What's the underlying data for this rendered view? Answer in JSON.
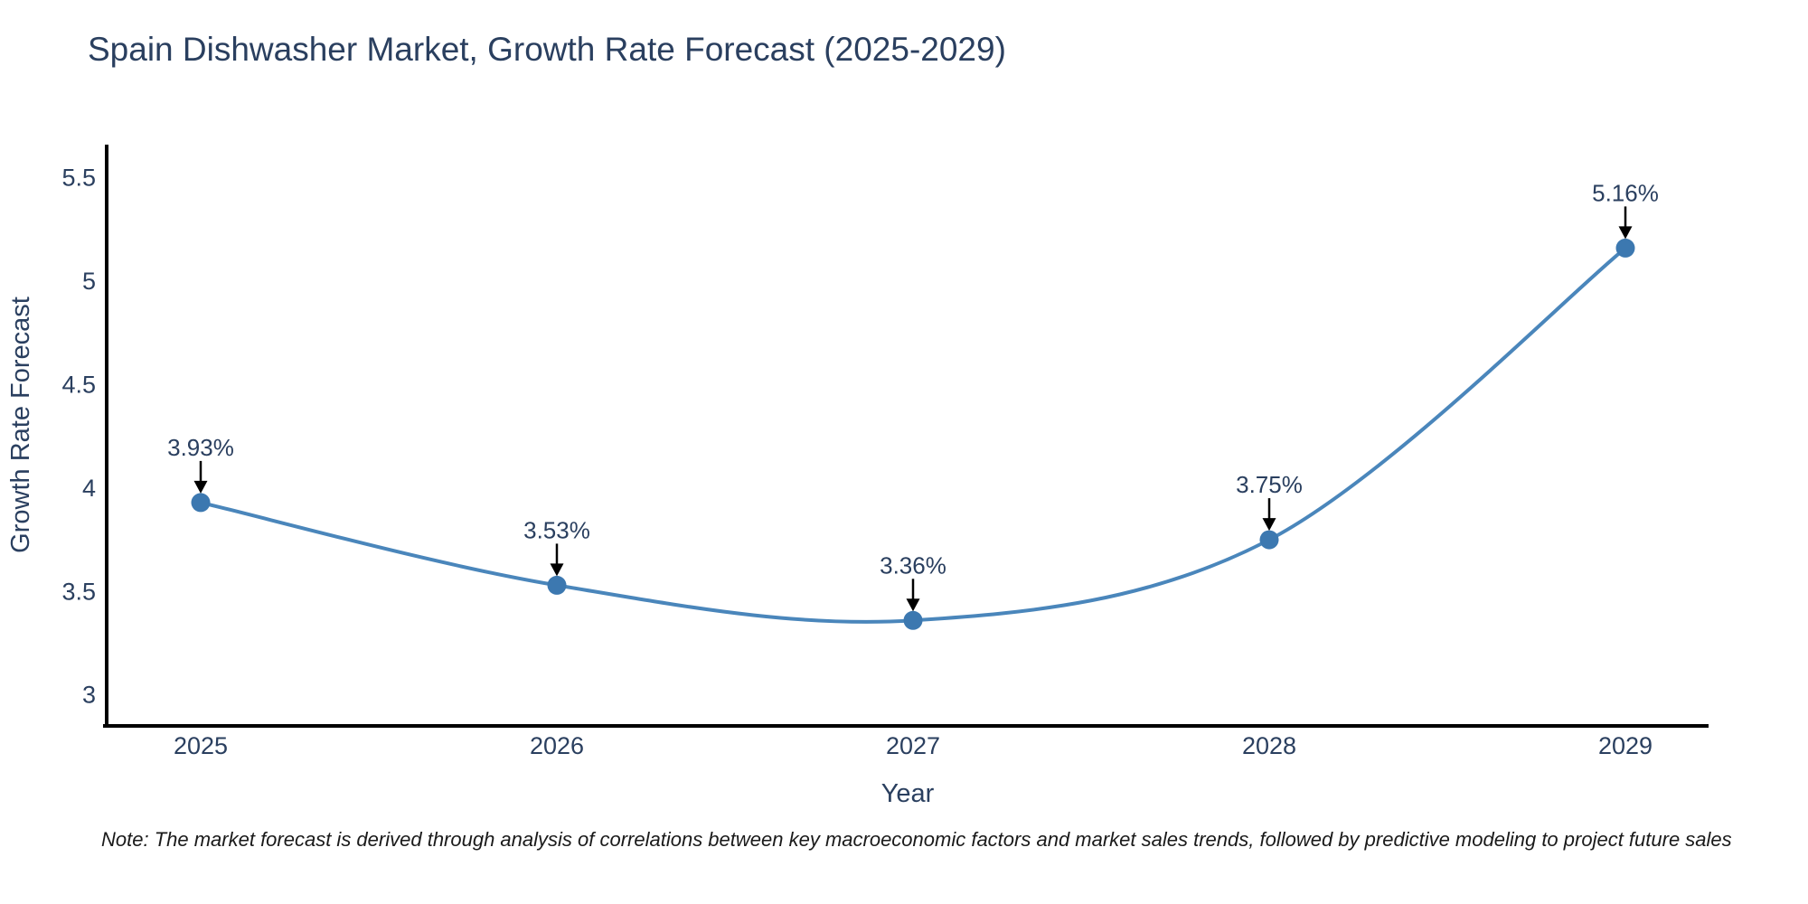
{
  "footer": {
    "note": "Note: The market forecast is derived through analysis of correlations between key macroeconomic factors and market sales trends, followed by predictive modeling to project future sales"
  },
  "colors": {
    "line": "#4a86bb",
    "marker": "#3c78b0",
    "axis": "#000000",
    "text": "#2a3f5f",
    "annotation_arrow": "#000000",
    "note_text": "#1a1a1a",
    "background": "#ffffff"
  },
  "chart_data": {
    "type": "line",
    "title": "Spain Dishwasher Market, Growth Rate Forecast (2025-2029)",
    "xlabel": "Year",
    "ylabel": "Growth Rate Forecast",
    "x": [
      2025,
      2026,
      2027,
      2028,
      2029
    ],
    "y": [
      3.93,
      3.53,
      3.36,
      3.75,
      5.16
    ],
    "point_labels": [
      "3.93%",
      "3.53%",
      "3.36%",
      "3.75%",
      "5.16%"
    ],
    "xtick_labels": [
      "2025",
      "2026",
      "2027",
      "2028",
      "2029"
    ],
    "yticks": [
      3,
      3.5,
      4,
      4.5,
      5,
      5.5
    ],
    "ytick_labels": [
      "3",
      "3.5",
      "4",
      "4.5",
      "5",
      "5.5"
    ],
    "ylim": [
      2.85,
      5.66
    ],
    "xlim_years": [
      2024.73,
      2029.23
    ],
    "grid": false,
    "legend": "none",
    "line_shape": "spline",
    "marker": "circle",
    "annotations": "value labels with downward arrows above each point"
  }
}
